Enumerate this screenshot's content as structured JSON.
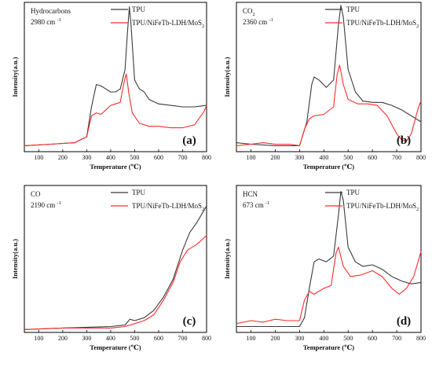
{
  "chart_data": [
    {
      "type": "line",
      "panel_label": "(a)",
      "annotation_gas": "Hydrocarbons",
      "annotation_wn": "2980 cm",
      "annotation_unit_sup": "-1",
      "xlabel": "Temperature (℃)",
      "ylabel": "Intensity(a.u.)",
      "xlim": [
        40,
        800
      ],
      "xticks": [
        100,
        200,
        300,
        400,
        500,
        600,
        700,
        800
      ],
      "ylim": [
        0,
        1
      ],
      "legend_position": "top-right",
      "series": [
        {
          "name": "TPU",
          "color": "#3a3a3a",
          "points": [
            [
              40,
              0.04
            ],
            [
              150,
              0.05
            ],
            [
              250,
              0.06
            ],
            [
              300,
              0.1
            ],
            [
              320,
              0.3
            ],
            [
              340,
              0.45
            ],
            [
              360,
              0.44
            ],
            [
              380,
              0.42
            ],
            [
              400,
              0.4
            ],
            [
              420,
              0.4
            ],
            [
              440,
              0.42
            ],
            [
              460,
              0.55
            ],
            [
              470,
              0.8
            ],
            [
              478,
              0.97
            ],
            [
              485,
              0.85
            ],
            [
              500,
              0.48
            ],
            [
              520,
              0.42
            ],
            [
              540,
              0.4
            ],
            [
              560,
              0.35
            ],
            [
              600,
              0.32
            ],
            [
              650,
              0.31
            ],
            [
              700,
              0.3
            ],
            [
              750,
              0.3
            ],
            [
              800,
              0.31
            ]
          ]
        },
        {
          "name": "TPU/NiFeTb-LDH/MoS",
          "name_sub": "2",
          "color": "#ff2b2b",
          "points": [
            [
              40,
              0.04
            ],
            [
              150,
              0.05
            ],
            [
              250,
              0.06
            ],
            [
              300,
              0.1
            ],
            [
              320,
              0.24
            ],
            [
              340,
              0.26
            ],
            [
              360,
              0.25
            ],
            [
              380,
              0.28
            ],
            [
              400,
              0.31
            ],
            [
              420,
              0.32
            ],
            [
              440,
              0.33
            ],
            [
              455,
              0.46
            ],
            [
              465,
              0.52
            ],
            [
              475,
              0.4
            ],
            [
              490,
              0.26
            ],
            [
              520,
              0.19
            ],
            [
              560,
              0.17
            ],
            [
              600,
              0.17
            ],
            [
              650,
              0.16
            ],
            [
              700,
              0.16
            ],
            [
              750,
              0.18
            ],
            [
              790,
              0.27
            ],
            [
              800,
              0.31
            ]
          ]
        }
      ]
    },
    {
      "type": "line",
      "panel_label": "(b)",
      "annotation_gas": "CO",
      "annotation_gas_sub": "2",
      "annotation_wn": "2360 cm",
      "annotation_unit_sup": "-1",
      "xlabel": "Temperature (℃)",
      "ylabel": "Intensity(a.u.)",
      "xlim": [
        40,
        800
      ],
      "xticks": [
        100,
        200,
        300,
        400,
        500,
        600,
        700,
        800
      ],
      "ylim": [
        0,
        1
      ],
      "legend_position": "top-right",
      "series": [
        {
          "name": "TPU",
          "color": "#3a3a3a",
          "points": [
            [
              40,
              0.06
            ],
            [
              100,
              0.05
            ],
            [
              200,
              0.04
            ],
            [
              300,
              0.04
            ],
            [
              330,
              0.2
            ],
            [
              350,
              0.45
            ],
            [
              360,
              0.5
            ],
            [
              380,
              0.48
            ],
            [
              410,
              0.43
            ],
            [
              440,
              0.48
            ],
            [
              460,
              0.85
            ],
            [
              470,
              0.98
            ],
            [
              480,
              0.9
            ],
            [
              500,
              0.55
            ],
            [
              530,
              0.4
            ],
            [
              560,
              0.34
            ],
            [
              600,
              0.33
            ],
            [
              640,
              0.33
            ],
            [
              680,
              0.31
            ],
            [
              720,
              0.28
            ],
            [
              760,
              0.24
            ],
            [
              800,
              0.2
            ]
          ]
        },
        {
          "name": "TPU/NiFeTb-LDH/MoS",
          "name_sub": "2",
          "color": "#ff2b2b",
          "points": [
            [
              40,
              0.04
            ],
            [
              100,
              0.05
            ],
            [
              150,
              0.06
            ],
            [
              200,
              0.05
            ],
            [
              260,
              0.05
            ],
            [
              300,
              0.04
            ],
            [
              320,
              0.15
            ],
            [
              340,
              0.22
            ],
            [
              360,
              0.24
            ],
            [
              400,
              0.25
            ],
            [
              440,
              0.3
            ],
            [
              455,
              0.52
            ],
            [
              465,
              0.58
            ],
            [
              480,
              0.45
            ],
            [
              500,
              0.35
            ],
            [
              540,
              0.32
            ],
            [
              580,
              0.32
            ],
            [
              620,
              0.31
            ],
            [
              660,
              0.24
            ],
            [
              700,
              0.12
            ],
            [
              720,
              0.08
            ],
            [
              740,
              0.07
            ],
            [
              760,
              0.12
            ],
            [
              790,
              0.3
            ],
            [
              800,
              0.34
            ]
          ]
        }
      ]
    },
    {
      "type": "line",
      "panel_label": "(c)",
      "annotation_gas": "CO",
      "annotation_wn": "2190 cm",
      "annotation_unit_sup": "-1",
      "xlabel": "Temperature (℃)",
      "ylabel": "Intensity(a.u.)",
      "xlim": [
        40,
        800
      ],
      "xticks": [
        100,
        200,
        300,
        400,
        500,
        600,
        700,
        800
      ],
      "ylim": [
        0,
        1
      ],
      "legend_position": "top-right",
      "series": [
        {
          "name": "TPU",
          "color": "#3a3a3a",
          "points": [
            [
              40,
              0.02
            ],
            [
              200,
              0.03
            ],
            [
              400,
              0.04
            ],
            [
              460,
              0.05
            ],
            [
              480,
              0.09
            ],
            [
              500,
              0.08
            ],
            [
              540,
              0.1
            ],
            [
              580,
              0.15
            ],
            [
              620,
              0.24
            ],
            [
              660,
              0.36
            ],
            [
              700,
              0.56
            ],
            [
              730,
              0.68
            ],
            [
              760,
              0.75
            ],
            [
              800,
              0.86
            ]
          ]
        },
        {
          "name": "TPU/NiFeTb-LDH/MoS",
          "name_sub": "2",
          "color": "#ff2b2b",
          "points": [
            [
              40,
              0.02
            ],
            [
              200,
              0.03
            ],
            [
              400,
              0.03
            ],
            [
              460,
              0.04
            ],
            [
              500,
              0.06
            ],
            [
              540,
              0.08
            ],
            [
              580,
              0.12
            ],
            [
              620,
              0.22
            ],
            [
              660,
              0.34
            ],
            [
              690,
              0.48
            ],
            [
              720,
              0.56
            ],
            [
              760,
              0.6
            ],
            [
              800,
              0.66
            ]
          ]
        }
      ]
    },
    {
      "type": "line",
      "panel_label": "(d)",
      "annotation_gas": "HCN",
      "annotation_wn": "673 cm",
      "annotation_unit_sup": "-1",
      "xlabel": "Temperature (℃)",
      "ylabel": "Intensity(a.u.)",
      "xlim": [
        40,
        800
      ],
      "xticks": [
        100,
        200,
        300,
        400,
        500,
        600,
        700,
        800
      ],
      "ylim": [
        0,
        1
      ],
      "legend_position": "top-right",
      "series": [
        {
          "name": "TPU",
          "color": "#3a3a3a",
          "points": [
            [
              40,
              0.04
            ],
            [
              100,
              0.04
            ],
            [
              200,
              0.04
            ],
            [
              300,
              0.04
            ],
            [
              320,
              0.1
            ],
            [
              340,
              0.3
            ],
            [
              360,
              0.48
            ],
            [
              380,
              0.5
            ],
            [
              410,
              0.48
            ],
            [
              440,
              0.52
            ],
            [
              460,
              0.8
            ],
            [
              470,
              0.96
            ],
            [
              480,
              0.9
            ],
            [
              500,
              0.58
            ],
            [
              530,
              0.48
            ],
            [
              560,
              0.45
            ],
            [
              600,
              0.46
            ],
            [
              640,
              0.43
            ],
            [
              680,
              0.38
            ],
            [
              720,
              0.35
            ],
            [
              760,
              0.33
            ],
            [
              800,
              0.34
            ]
          ]
        },
        {
          "name": "TPU/NiFeTb-LDH/MoS",
          "name_sub": "2",
          "color": "#ff2b2b",
          "points": [
            [
              40,
              0.06
            ],
            [
              100,
              0.08
            ],
            [
              150,
              0.07
            ],
            [
              200,
              0.09
            ],
            [
              250,
              0.08
            ],
            [
              300,
              0.08
            ],
            [
              320,
              0.22
            ],
            [
              340,
              0.28
            ],
            [
              360,
              0.26
            ],
            [
              400,
              0.3
            ],
            [
              430,
              0.32
            ],
            [
              450,
              0.54
            ],
            [
              460,
              0.58
            ],
            [
              480,
              0.45
            ],
            [
              510,
              0.38
            ],
            [
              550,
              0.39
            ],
            [
              600,
              0.42
            ],
            [
              640,
              0.38
            ],
            [
              680,
              0.3
            ],
            [
              710,
              0.26
            ],
            [
              740,
              0.3
            ],
            [
              770,
              0.38
            ],
            [
              800,
              0.55
            ]
          ]
        }
      ]
    }
  ]
}
